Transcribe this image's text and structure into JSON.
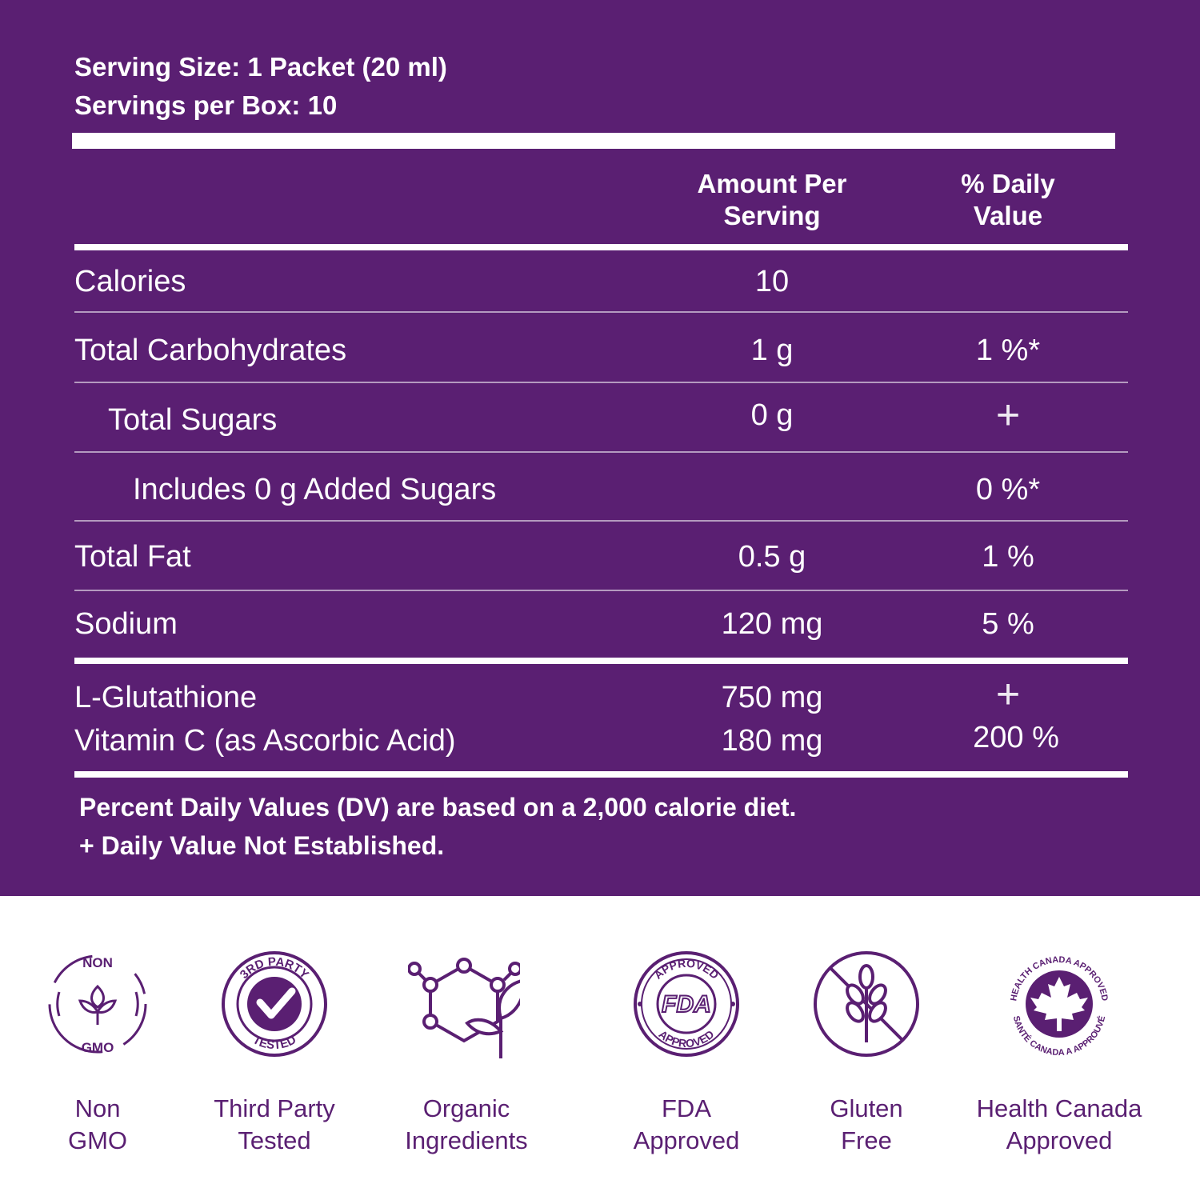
{
  "serving": {
    "size": "Serving Size: 1 Packet (20 ml)",
    "per_box": "Servings per Box: 10"
  },
  "table": {
    "header_amount": [
      "Amount Per",
      "Serving"
    ],
    "header_dv": [
      "% Daily",
      "Value"
    ],
    "rows": [
      {
        "name": "Calories",
        "amount": "10",
        "dv": ""
      },
      {
        "name": "Total Carbohydrates",
        "amount": "1 g",
        "dv": "1 %*"
      },
      {
        "name": "Total Sugars",
        "amount": "0 g",
        "dv": "+"
      },
      {
        "name": "Includes 0 g Added Sugars",
        "amount": "",
        "dv": "0 %*"
      },
      {
        "name": "Total Fat",
        "amount": "0.5 g",
        "dv": "1 %"
      },
      {
        "name": "Sodium",
        "amount": "120 mg",
        "dv": "5 %"
      }
    ],
    "extra_rows": [
      {
        "name": "L-Glutathione",
        "amount": "750 mg",
        "dv": "+"
      },
      {
        "name": "Vitamin C (as Ascorbic Acid)",
        "amount": "180 mg",
        "dv": "200 %"
      }
    ]
  },
  "footnotes": [
    "Percent Daily Values (DV) are based on a 2,000 calorie diet.",
    "+ Daily Value Not Established."
  ],
  "badges": [
    {
      "icon": "non-gmo-icon",
      "label": [
        "Non",
        "GMO"
      ],
      "text_top": "NON",
      "text_bottom": "GMO"
    },
    {
      "icon": "third-party-tested-icon",
      "label": [
        "Third Party",
        "Tested"
      ],
      "text_top": "3RD PARTY",
      "text_bottom": "TESTED"
    },
    {
      "icon": "organic-ingredients-icon",
      "label": [
        "Organic",
        "Ingredients"
      ]
    },
    {
      "icon": "fda-approved-icon",
      "label": [
        "FDA",
        "Approved"
      ],
      "text_top": "APPROVED",
      "text_mid": "FDA",
      "text_bottom": "APPROVED"
    },
    {
      "icon": "gluten-free-icon",
      "label": [
        "Gluten",
        "Free"
      ]
    },
    {
      "icon": "health-canada-icon",
      "label": [
        "Health Canada",
        "Approved"
      ],
      "text_top": "HEALTH CANADA APPROVED",
      "text_bottom": "SANTÉ CANADA A APPROUVÉ"
    }
  ],
  "colors": {
    "panel": "#5a1f72",
    "text_light": "#ffffff",
    "accent": "#5a1f72"
  }
}
